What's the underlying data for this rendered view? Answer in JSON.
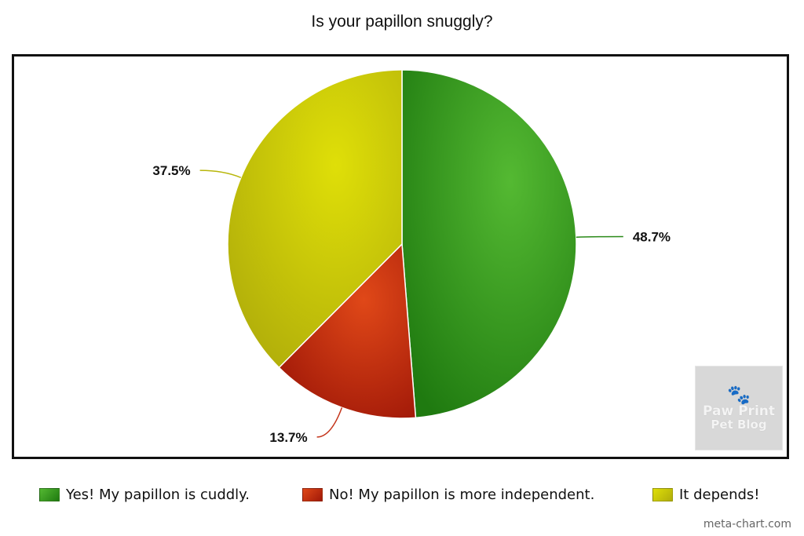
{
  "chart_data": {
    "type": "pie",
    "title": "Is your papillon snuggly?",
    "slices": [
      {
        "label": "Yes! My papillon is cuddly.",
        "value": 48.7,
        "display": "48.7%",
        "color": "#2e9a1e"
      },
      {
        "label": "No! My papillon is more independent.",
        "value": 13.7,
        "display": "13.7%",
        "color": "#c4220e"
      },
      {
        "label": "It depends!",
        "value": 37.5,
        "display": "37.5%",
        "color": "#c9c80a"
      }
    ],
    "legend_position": "bottom"
  },
  "watermark": {
    "paws": "🐾",
    "line1": "Paw Print",
    "line2": "Pet Blog"
  },
  "credit": "meta-chart.com"
}
